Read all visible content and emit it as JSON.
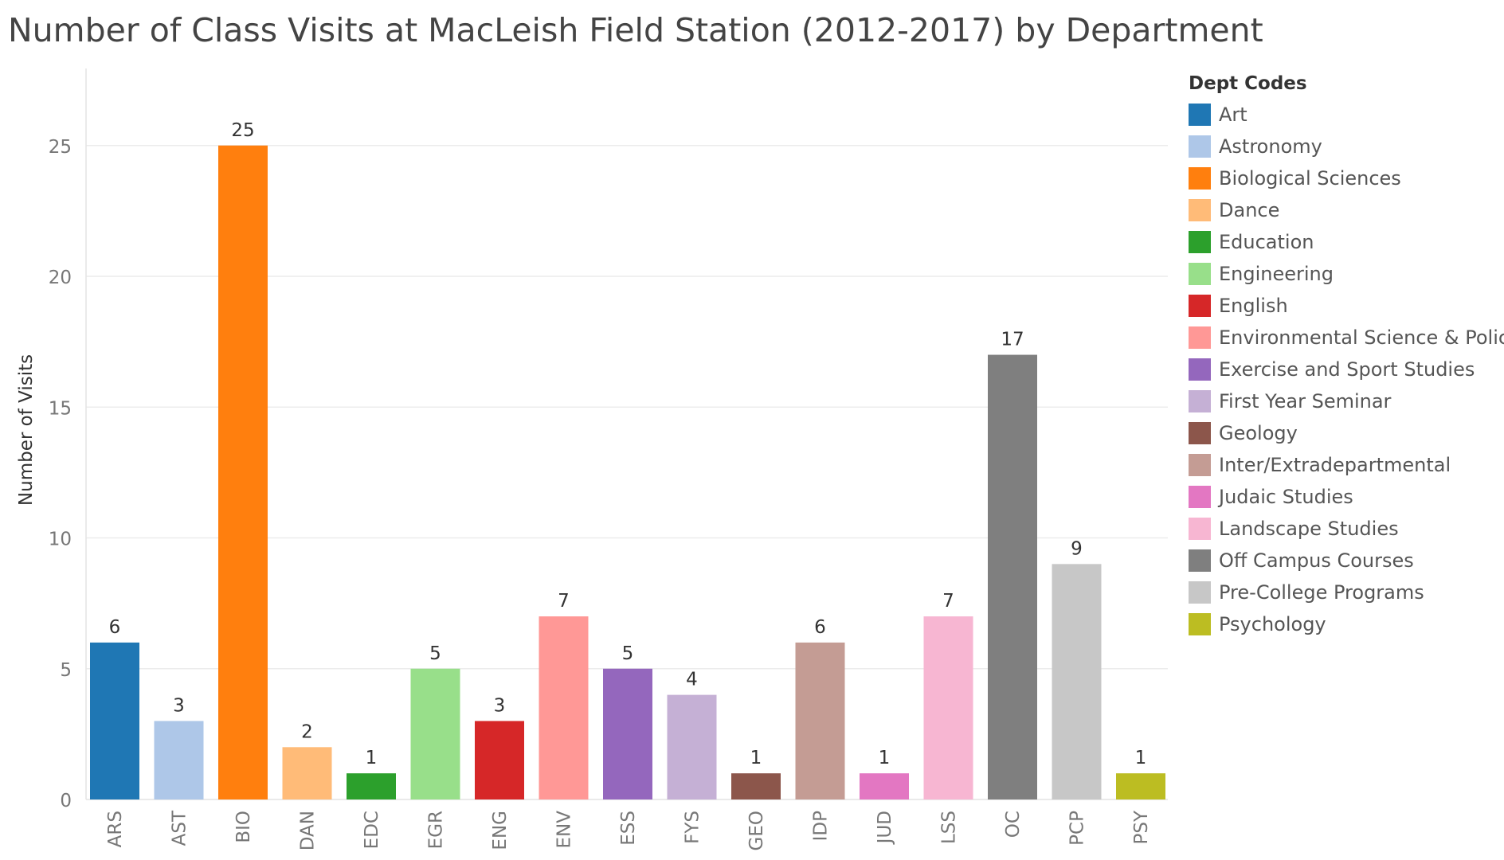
{
  "title": "Number of Class Visits at MacLeish Field Station (2012-2017) by Department",
  "chart_data": {
    "type": "bar",
    "title": "Number of Class Visits at MacLeish Field Station (2012-2017) by Department",
    "xlabel": "",
    "ylabel": "Number of Visits",
    "ylim": [
      0,
      28
    ],
    "yticks": [
      0,
      5,
      10,
      15,
      20,
      25
    ],
    "grid": true,
    "legend_position": "right",
    "categories": [
      "ARS",
      "AST",
      "BIO",
      "DAN",
      "EDC",
      "EGR",
      "ENG",
      "ENV",
      "ESS",
      "FYS",
      "GEO",
      "IDP",
      "JUD",
      "LSS",
      "OC",
      "PCP",
      "PSY"
    ],
    "values": [
      6,
      3,
      25,
      2,
      1,
      5,
      3,
      7,
      5,
      4,
      1,
      6,
      1,
      7,
      17,
      9,
      1
    ],
    "colors": [
      "#1f77b4",
      "#aec7e8",
      "#ff7f0e",
      "#ffbb78",
      "#2ca02c",
      "#98df8a",
      "#d62728",
      "#ff9896",
      "#9467bd",
      "#c5b0d5",
      "#8c564b",
      "#c49c94",
      "#e377c2",
      "#f7b6d2",
      "#7f7f7f",
      "#c7c7c7",
      "#bcbd22"
    ],
    "legend": {
      "title": "Dept Codes",
      "entries": [
        "Art",
        "Astronomy",
        "Biological Sciences",
        "Dance",
        "Education",
        "Engineering",
        "English",
        "Environmental Science & Policy",
        "Exercise and Sport Studies",
        "First Year Seminar",
        "Geology",
        "Inter/Extradepartmental",
        "Judaic Studies",
        "Landscape Studies",
        "Off Campus Courses",
        "Pre-College Programs",
        "Psychology"
      ]
    }
  }
}
